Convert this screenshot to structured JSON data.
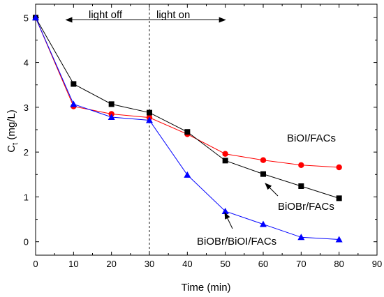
{
  "chart_data": {
    "type": "line",
    "xlabel": "Time (min)",
    "ylabel_main": "C",
    "ylabel_sub": "t",
    "ylabel_unit": " (mg/L)",
    "xlim": [
      0,
      90
    ],
    "ylim": [
      -0.3,
      5.3
    ],
    "x_ticks": [
      0,
      10,
      20,
      30,
      40,
      50,
      60,
      70,
      80,
      90
    ],
    "y_ticks": [
      0,
      1,
      2,
      3,
      4,
      5
    ],
    "grid": false,
    "x": [
      0,
      10,
      20,
      30,
      40,
      50,
      60,
      70,
      80
    ],
    "series": [
      {
        "name": "BiOI/FACs",
        "color": "#ff0000",
        "marker": "circle",
        "values": [
          5.0,
          3.02,
          2.85,
          2.77,
          2.4,
          1.96,
          1.82,
          1.71,
          1.66
        ]
      },
      {
        "name": "BiOBr/FACs",
        "color": "#000000",
        "marker": "square",
        "values": [
          5.0,
          3.52,
          3.07,
          2.88,
          2.45,
          1.81,
          1.51,
          1.24,
          0.97
        ]
      },
      {
        "name": "BiOBr/BiOI/FACs",
        "color": "#0000ff",
        "marker": "triangle",
        "values": [
          5.0,
          3.07,
          2.78,
          2.71,
          1.49,
          0.68,
          0.39,
          0.1,
          0.05
        ]
      }
    ],
    "dashed_vline_x": 30,
    "light_arrow": {
      "x_from": 8,
      "x_to": 50,
      "y": 4.95
    },
    "annotations": [
      {
        "text": "light off"
      },
      {
        "text": "light on"
      },
      {
        "text": "BiOI/FACs"
      },
      {
        "text": "BiOBr/FACs"
      },
      {
        "text": "BiOBr/BiOI/FACs"
      }
    ]
  }
}
